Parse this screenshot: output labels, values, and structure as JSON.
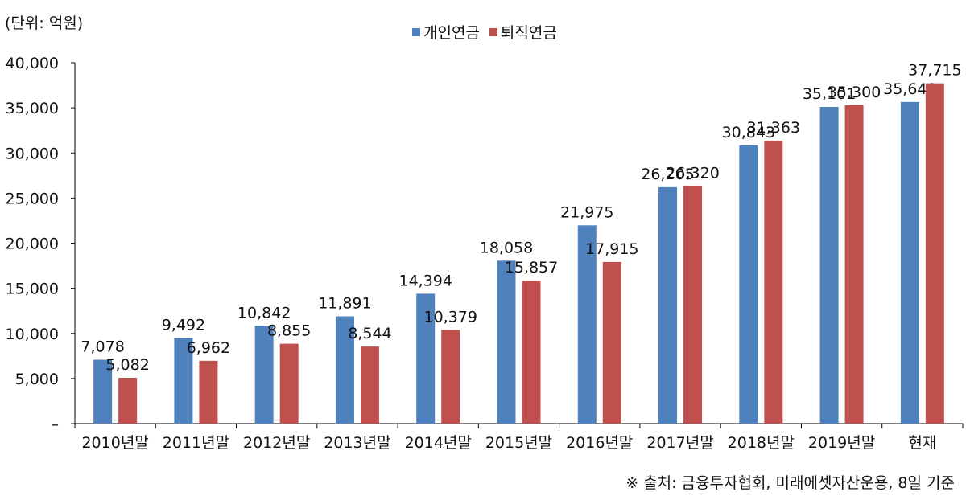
{
  "unit_label": "(단위: 억원)",
  "source_note": "※ 출처: 금융투자협회, 미래에셋자산운용, 8일 기준",
  "colors": {
    "personal": "#4f81bd",
    "retirement": "#c0504d",
    "axis": "#000000"
  },
  "chart_data": {
    "type": "bar",
    "title": "",
    "xlabel": "",
    "ylabel": "",
    "ylim": [
      0,
      40000
    ],
    "yticks": [
      0,
      5000,
      10000,
      15000,
      20000,
      25000,
      30000,
      35000,
      40000
    ],
    "ytick_labels": [
      "–",
      "5,000",
      "10,000",
      "15,000",
      "20,000",
      "25,000",
      "30,000",
      "35,000",
      "40,000"
    ],
    "grid": false,
    "legend_position": "top-center",
    "categories": [
      "2010년말",
      "2011년말",
      "2012년말",
      "2013년말",
      "2014년말",
      "2015년말",
      "2016년말",
      "2017년말",
      "2018년말",
      "2019년말",
      "현재"
    ],
    "series": [
      {
        "name": "개인연금",
        "values": [
          7078,
          9492,
          10842,
          11891,
          14394,
          18058,
          21975,
          26205,
          30843,
          35101,
          35648
        ],
        "labels": [
          "7,078",
          "9,492",
          "10,842",
          "11,891",
          "14,394",
          "18,058",
          "21,975",
          "26,205",
          "30,843",
          "35,101",
          "35,648"
        ]
      },
      {
        "name": "퇴직연금",
        "values": [
          5082,
          6962,
          8855,
          8544,
          10379,
          15857,
          17915,
          26320,
          31363,
          35300,
          37715
        ],
        "labels": [
          "5,082",
          "6,962",
          "8,855",
          "8,544",
          "10,379",
          "15,857",
          "17,915",
          "26,320",
          "31,363",
          "35,300",
          "37,715"
        ]
      }
    ]
  }
}
